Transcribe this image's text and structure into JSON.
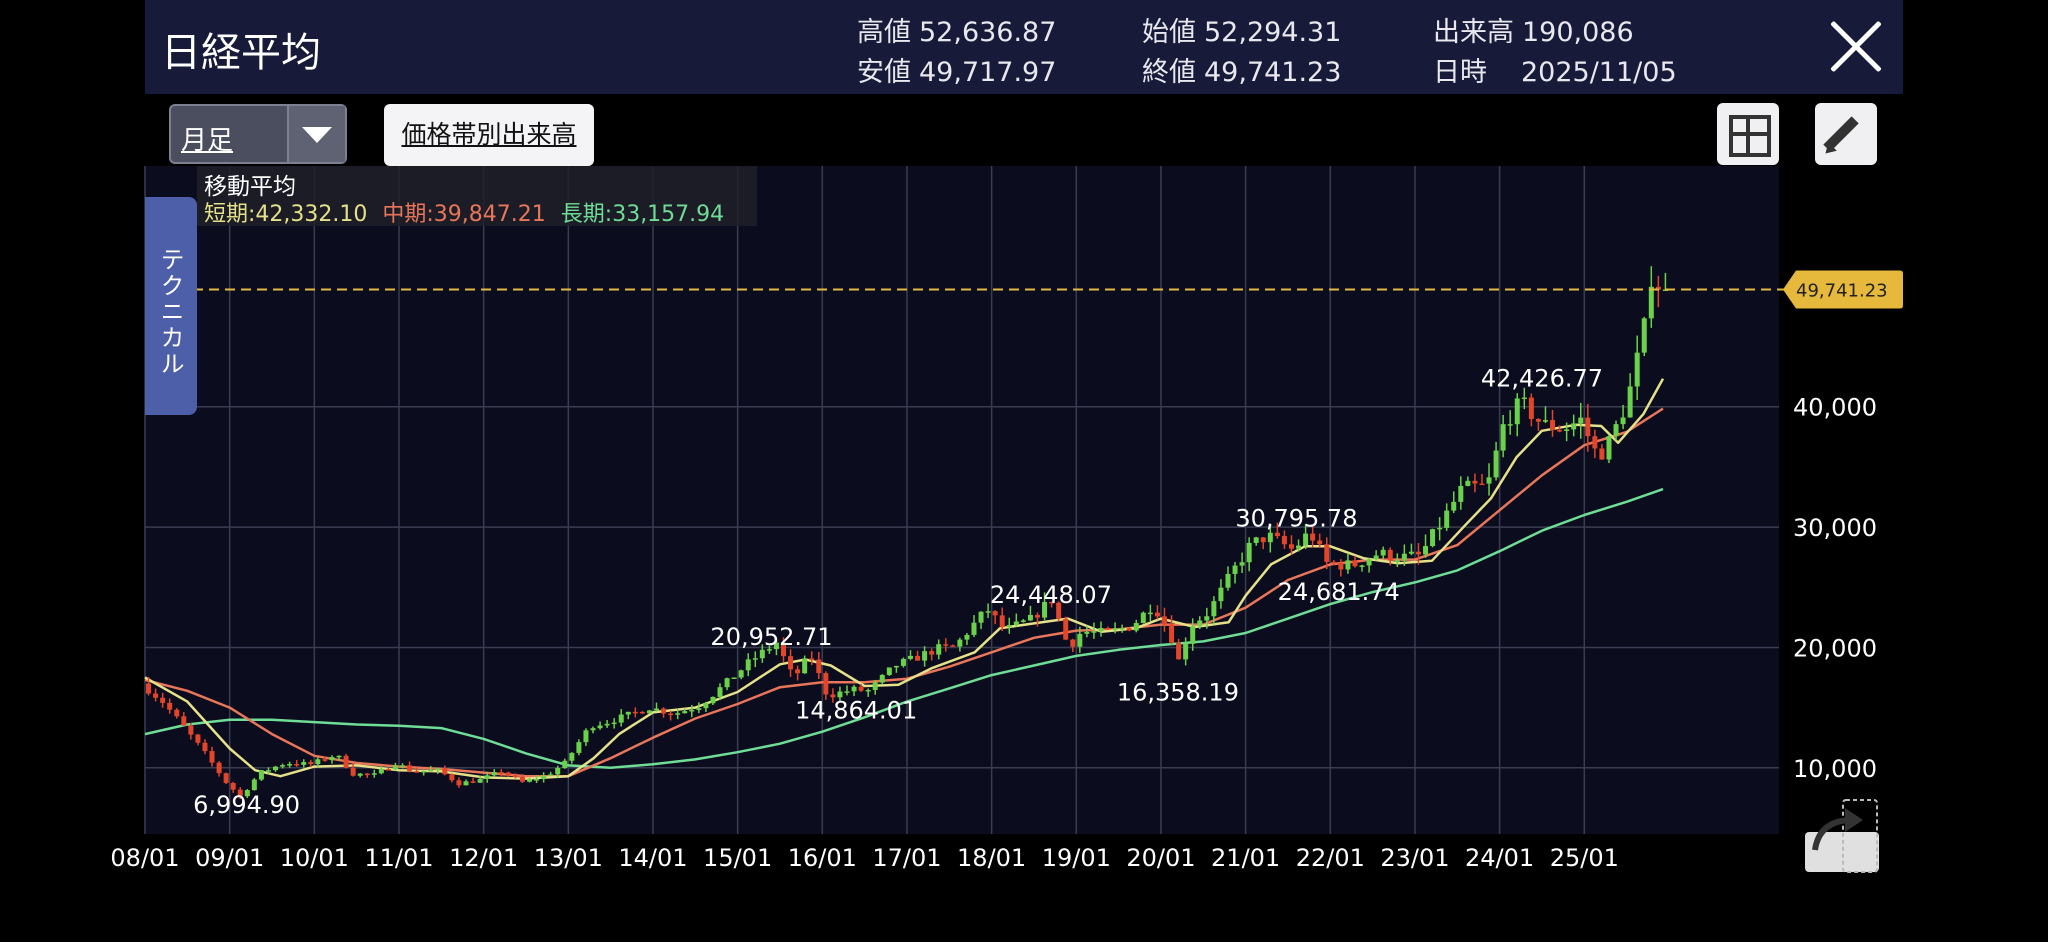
{
  "header": {
    "title": "日経平均",
    "stats": [
      {
        "label": "高値",
        "value": "52,636.87"
      },
      {
        "label": "安値",
        "value": "49,717.97"
      },
      {
        "label": "始値",
        "value": "52,294.31"
      },
      {
        "label": "終値",
        "value": "49,741.23"
      },
      {
        "label": "出来高",
        "value": "190,086"
      },
      {
        "label": "日時",
        "value": "2025/11/05"
      }
    ]
  },
  "toolbar": {
    "period": "月足",
    "volume_profile": "価格帯別出来高"
  },
  "technical_tab": "テクニカル",
  "moving_average": {
    "title": "移動平均",
    "short": "短期:42,332.10",
    "mid": "中期:39,847.21",
    "long": "長期:33,157.94"
  },
  "colors": {
    "up": "#6ad24a",
    "down": "#e2452a",
    "ma_short": "#e5e08a",
    "ma_mid": "#e8765a",
    "ma_long": "#6fdd96",
    "current_price": "#e6b83c",
    "background": "#0b0c1e",
    "header": "#171a38"
  },
  "icons": [
    "dropdown-arrow-icon",
    "grid-layout-icon",
    "pencil-icon",
    "close-icon",
    "share-icon"
  ],
  "chart_data": {
    "type": "candlestick",
    "ylim": [
      4500,
      60000
    ],
    "yticks": [
      10000,
      20000,
      30000,
      40000
    ],
    "ytick_labels": [
      "10,000",
      "20,000",
      "30,000",
      "40,000"
    ],
    "xlim": [
      2008.0,
      2027.3
    ],
    "xtick_labels": [
      "08/01",
      "09/01",
      "10/01",
      "11/01",
      "12/01",
      "13/01",
      "14/01",
      "15/01",
      "16/01",
      "17/01",
      "18/01",
      "19/01",
      "20/01",
      "21/01",
      "22/01",
      "23/01",
      "24/01",
      "25/01"
    ],
    "grid": true,
    "current_price": 49741.23,
    "current_price_label": "49,741.23",
    "annotations": [
      {
        "t": 2009.2,
        "v": 6994.9,
        "text": "6,994.90"
      },
      {
        "t": 2015.4,
        "v": 20952.71,
        "text": "20,952.71"
      },
      {
        "t": 2016.4,
        "v": 14864.01,
        "text": "14,864.01"
      },
      {
        "t": 2018.7,
        "v": 24448.07,
        "text": "24,448.07"
      },
      {
        "t": 2020.2,
        "v": 16358.19,
        "text": "16,358.19"
      },
      {
        "t": 2021.6,
        "v": 30795.78,
        "text": "30,795.78"
      },
      {
        "t": 2022.1,
        "v": 24681.74,
        "text": "24,681.74"
      },
      {
        "t": 2024.5,
        "v": 42426.77,
        "text": "42,426.77"
      }
    ],
    "price": [
      [
        2008.0,
        17000
      ],
      [
        2008.25,
        15500
      ],
      [
        2008.5,
        13400
      ],
      [
        2008.75,
        11200
      ],
      [
        2009.0,
        8800
      ],
      [
        2009.17,
        7600
      ],
      [
        2009.4,
        9600
      ],
      [
        2009.7,
        10400
      ],
      [
        2010.0,
        10300
      ],
      [
        2010.3,
        11100
      ],
      [
        2010.5,
        9500
      ],
      [
        2010.75,
        9400
      ],
      [
        2011.0,
        10400
      ],
      [
        2011.2,
        9700
      ],
      [
        2011.5,
        9800
      ],
      [
        2011.75,
        8700
      ],
      [
        2012.0,
        9000
      ],
      [
        2012.25,
        9700
      ],
      [
        2012.5,
        8800
      ],
      [
        2012.8,
        9400
      ],
      [
        2013.0,
        10400
      ],
      [
        2013.3,
        13500
      ],
      [
        2013.5,
        13800
      ],
      [
        2013.8,
        14500
      ],
      [
        2014.0,
        15000
      ],
      [
        2014.3,
        14500
      ],
      [
        2014.6,
        15200
      ],
      [
        2014.9,
        17000
      ],
      [
        2015.2,
        18900
      ],
      [
        2015.5,
        20400
      ],
      [
        2015.7,
        17400
      ],
      [
        2015.9,
        19400
      ],
      [
        2016.1,
        16000
      ],
      [
        2016.4,
        16500
      ],
      [
        2016.6,
        16400
      ],
      [
        2016.9,
        18500
      ],
      [
        2017.1,
        19000
      ],
      [
        2017.4,
        19900
      ],
      [
        2017.6,
        20000
      ],
      [
        2017.9,
        22500
      ],
      [
        2018.0,
        23100
      ],
      [
        2018.2,
        21400
      ],
      [
        2018.5,
        22300
      ],
      [
        2018.75,
        24000
      ],
      [
        2018.95,
        20000
      ],
      [
        2019.1,
        21300
      ],
      [
        2019.4,
        21200
      ],
      [
        2019.7,
        21800
      ],
      [
        2019.95,
        23600
      ],
      [
        2020.15,
        21200
      ],
      [
        2020.25,
        18900
      ],
      [
        2020.4,
        21900
      ],
      [
        2020.6,
        22900
      ],
      [
        2020.9,
        26400
      ],
      [
        2021.1,
        28500
      ],
      [
        2021.3,
        29300
      ],
      [
        2021.6,
        28100
      ],
      [
        2021.8,
        29600
      ],
      [
        2022.0,
        27000
      ],
      [
        2022.3,
        26800
      ],
      [
        2022.6,
        27800
      ],
      [
        2022.9,
        27500
      ],
      [
        2023.1,
        27600
      ],
      [
        2023.4,
        30900
      ],
      [
        2023.6,
        33200
      ],
      [
        2023.9,
        33400
      ],
      [
        2024.1,
        38800
      ],
      [
        2024.3,
        40300
      ],
      [
        2024.55,
        38500
      ],
      [
        2024.8,
        38200
      ],
      [
        2025.0,
        38900
      ],
      [
        2025.2,
        35800
      ],
      [
        2025.35,
        37200
      ],
      [
        2025.55,
        40500
      ],
      [
        2025.7,
        44900
      ],
      [
        2025.8,
        48100
      ],
      [
        2025.85,
        52300
      ],
      [
        2025.93,
        49741
      ]
    ],
    "ma_short": [
      [
        2008.0,
        17500
      ],
      [
        2008.5,
        15500
      ],
      [
        2009.0,
        11600
      ],
      [
        2009.3,
        9800
      ],
      [
        2009.6,
        9300
      ],
      [
        2010.0,
        10100
      ],
      [
        2010.5,
        10200
      ],
      [
        2011.0,
        9800
      ],
      [
        2011.5,
        9700
      ],
      [
        2012.0,
        9200
      ],
      [
        2012.5,
        9100
      ],
      [
        2013.0,
        9300
      ],
      [
        2013.3,
        10800
      ],
      [
        2013.6,
        12800
      ],
      [
        2014.0,
        14600
      ],
      [
        2014.5,
        15000
      ],
      [
        2015.0,
        16300
      ],
      [
        2015.5,
        18600
      ],
      [
        2015.8,
        19000
      ],
      [
        2016.1,
        18500
      ],
      [
        2016.5,
        16800
      ],
      [
        2016.9,
        16900
      ],
      [
        2017.3,
        18300
      ],
      [
        2017.8,
        19600
      ],
      [
        2018.1,
        21600
      ],
      [
        2018.5,
        22000
      ],
      [
        2018.9,
        22400
      ],
      [
        2019.3,
        21300
      ],
      [
        2019.7,
        21600
      ],
      [
        2020.0,
        22400
      ],
      [
        2020.4,
        21700
      ],
      [
        2020.8,
        22100
      ],
      [
        2021.0,
        24300
      ],
      [
        2021.3,
        26900
      ],
      [
        2021.7,
        28400
      ],
      [
        2022.0,
        28400
      ],
      [
        2022.4,
        27400
      ],
      [
        2022.8,
        27000
      ],
      [
        2023.2,
        27200
      ],
      [
        2023.6,
        30200
      ],
      [
        2023.9,
        32400
      ],
      [
        2024.2,
        35800
      ],
      [
        2024.5,
        38000
      ],
      [
        2024.9,
        38500
      ],
      [
        2025.2,
        38400
      ],
      [
        2025.4,
        37000
      ],
      [
        2025.7,
        39400
      ],
      [
        2025.93,
        42332
      ]
    ],
    "ma_mid": [
      [
        2008.0,
        17300
      ],
      [
        2008.5,
        16400
      ],
      [
        2009.0,
        15000
      ],
      [
        2009.5,
        12800
      ],
      [
        2010.0,
        11000
      ],
      [
        2010.5,
        10400
      ],
      [
        2011.0,
        10100
      ],
      [
        2011.5,
        9900
      ],
      [
        2012.0,
        9600
      ],
      [
        2012.5,
        9300
      ],
      [
        2013.0,
        9300
      ],
      [
        2013.5,
        10800
      ],
      [
        2014.0,
        12500
      ],
      [
        2014.5,
        14100
      ],
      [
        2015.0,
        15300
      ],
      [
        2015.5,
        16700
      ],
      [
        2016.0,
        17100
      ],
      [
        2016.5,
        17100
      ],
      [
        2017.0,
        17400
      ],
      [
        2017.5,
        18400
      ],
      [
        2018.0,
        19600
      ],
      [
        2018.5,
        20800
      ],
      [
        2019.0,
        21400
      ],
      [
        2019.5,
        21500
      ],
      [
        2020.0,
        21900
      ],
      [
        2020.5,
        21900
      ],
      [
        2021.0,
        23300
      ],
      [
        2021.5,
        25600
      ],
      [
        2022.0,
        26900
      ],
      [
        2022.5,
        27300
      ],
      [
        2023.0,
        27300
      ],
      [
        2023.5,
        28500
      ],
      [
        2024.0,
        31400
      ],
      [
        2024.5,
        34300
      ],
      [
        2025.0,
        36800
      ],
      [
        2025.5,
        37900
      ],
      [
        2025.93,
        39847
      ]
    ],
    "ma_long": [
      [
        2008.0,
        12800
      ],
      [
        2008.5,
        13600
      ],
      [
        2009.0,
        14000
      ],
      [
        2009.5,
        14000
      ],
      [
        2010.0,
        13800
      ],
      [
        2010.5,
        13600
      ],
      [
        2011.0,
        13500
      ],
      [
        2011.5,
        13300
      ],
      [
        2012.0,
        12400
      ],
      [
        2012.5,
        11200
      ],
      [
        2013.0,
        10200
      ],
      [
        2013.5,
        10000
      ],
      [
        2014.0,
        10300
      ],
      [
        2014.5,
        10700
      ],
      [
        2015.0,
        11300
      ],
      [
        2015.5,
        12000
      ],
      [
        2016.0,
        13000
      ],
      [
        2016.5,
        14200
      ],
      [
        2017.0,
        15500
      ],
      [
        2017.5,
        16600
      ],
      [
        2018.0,
        17700
      ],
      [
        2018.5,
        18500
      ],
      [
        2019.0,
        19300
      ],
      [
        2019.5,
        19800
      ],
      [
        2020.0,
        20200
      ],
      [
        2020.5,
        20500
      ],
      [
        2021.0,
        21200
      ],
      [
        2021.5,
        22400
      ],
      [
        2022.0,
        23600
      ],
      [
        2022.5,
        24600
      ],
      [
        2023.0,
        25400
      ],
      [
        2023.5,
        26400
      ],
      [
        2024.0,
        28000
      ],
      [
        2024.5,
        29700
      ],
      [
        2025.0,
        31000
      ],
      [
        2025.5,
        32100
      ],
      [
        2025.93,
        33158
      ]
    ]
  }
}
